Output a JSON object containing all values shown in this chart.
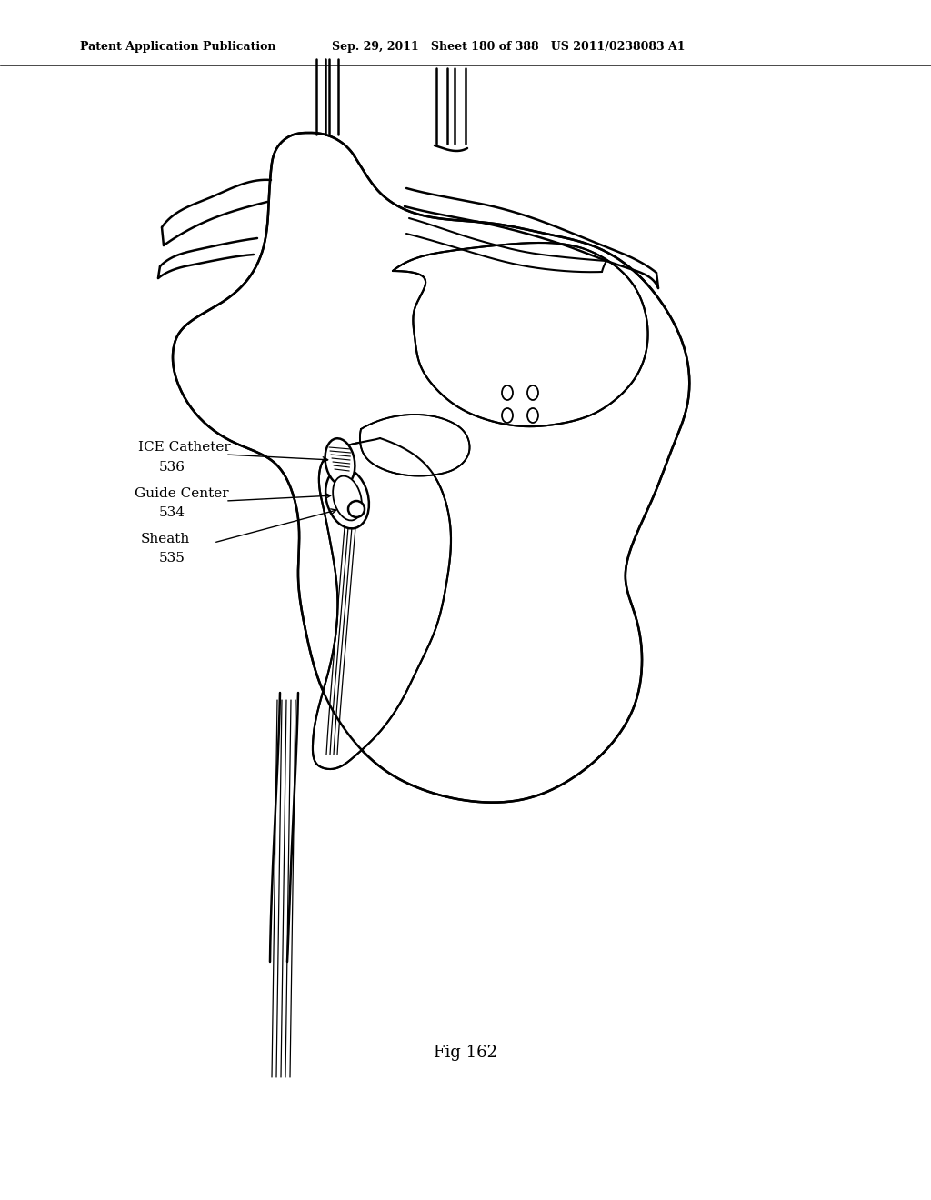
{
  "bg_color": "#ffffff",
  "line_color": "#000000",
  "lw": 1.8,
  "header1": "Patent Application Publication",
  "header2": "Sep. 29, 2011   Sheet 180 of 388   US 2011/0238083 A1",
  "fig_label": "Fig 162",
  "label_ice": "ICE Catheter",
  "label_ice_num": "536",
  "label_guide": "Guide Center",
  "label_guide_num": "534",
  "label_sheath": "Sheath",
  "label_sheath_num": "535"
}
